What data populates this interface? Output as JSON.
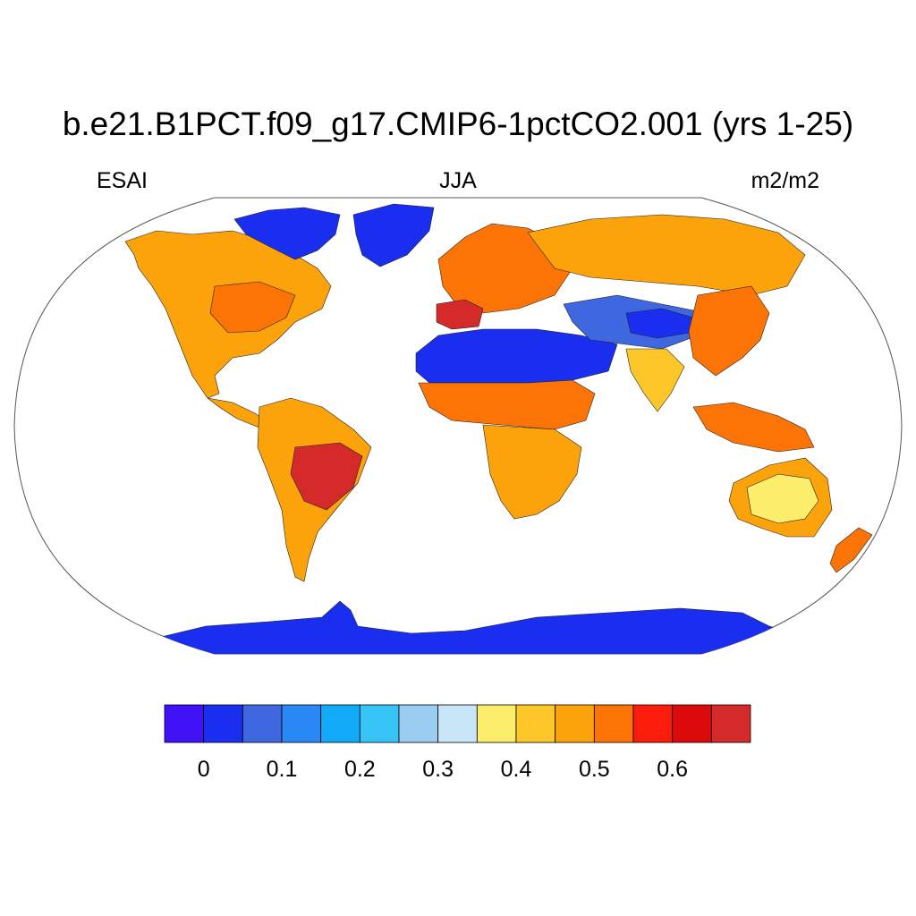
{
  "title": "b.e21.B1PCT.f09_g17.CMIP6-1pctCO2.001 (yrs 1-25)",
  "subtitle_left": "ESAI",
  "subtitle_center": "JJA",
  "subtitle_right": "m2/m2",
  "projection": "Robinson",
  "colorbar": {
    "colors": [
      "#4012f5",
      "#1a2ef0",
      "#3f68e0",
      "#2a88f5",
      "#10aaf8",
      "#36c4f7",
      "#9acdf0",
      "#c8e6f8",
      "#fced6a",
      "#fdc72a",
      "#fca30c",
      "#fd7406",
      "#fc1c0c",
      "#dc0a0a",
      "#d42a2a"
    ],
    "levels": [
      0,
      0.05,
      0.1,
      0.15,
      0.2,
      0.25,
      0.3,
      0.35,
      0.4,
      0.45,
      0.5,
      0.55,
      0.6,
      0.65
    ],
    "tick_labels": [
      "0",
      "0.1",
      "0.2",
      "0.3",
      "0.4",
      "0.5",
      "0.6"
    ]
  },
  "regions": [
    {
      "name": "North America",
      "color": "#fca30c"
    },
    {
      "name": "Eastern US",
      "color": "#fd7406"
    },
    {
      "name": "Canadian Arctic",
      "color": "#1a2ef0"
    },
    {
      "name": "Greenland",
      "color": "#1a2ef0"
    },
    {
      "name": "South America",
      "color": "#fca30c"
    },
    {
      "name": "Brazil Highlands",
      "color": "#d42a2a"
    },
    {
      "name": "Europe",
      "color": "#fd7406"
    },
    {
      "name": "Iberia",
      "color": "#d42a2a"
    },
    {
      "name": "Sahara",
      "color": "#1a2ef0"
    },
    {
      "name": "Sahel",
      "color": "#fd7406"
    },
    {
      "name": "Southern Africa",
      "color": "#fca30c"
    },
    {
      "name": "Siberia",
      "color": "#fca30c"
    },
    {
      "name": "Central Asia",
      "color": "#3f68e0"
    },
    {
      "name": "Tibet",
      "color": "#1a2ef0"
    },
    {
      "name": "India",
      "color": "#fdc72a"
    },
    {
      "name": "Southeast Asia",
      "color": "#fd7406"
    },
    {
      "name": "Australia interior",
      "color": "#fced6a"
    },
    {
      "name": "Australia coast",
      "color": "#fca30c"
    },
    {
      "name": "New Zealand",
      "color": "#fd7406"
    },
    {
      "name": "Antarctica",
      "color": "#1a2ef0"
    }
  ]
}
